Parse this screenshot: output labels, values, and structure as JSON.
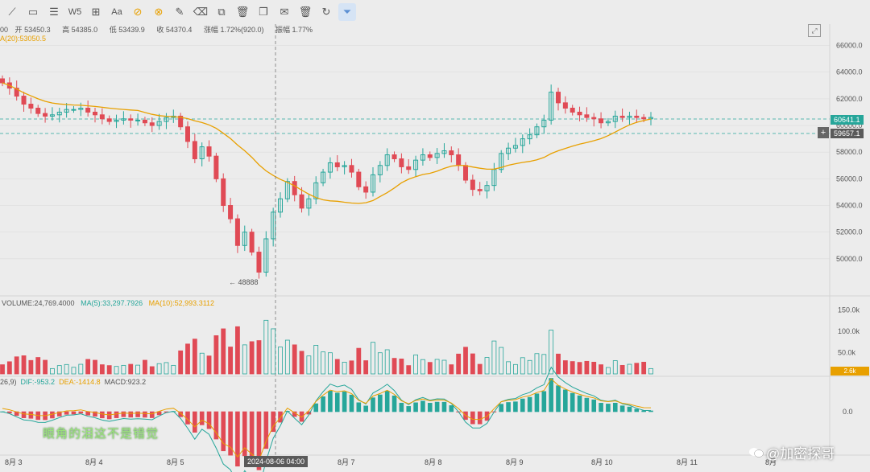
{
  "toolbar": {
    "tools": [
      {
        "icon": "trend-line-icon"
      },
      {
        "icon": "rectangle-icon"
      },
      {
        "icon": "parallel-channel-icon"
      },
      {
        "icon": "wave-icon",
        "label": "W5"
      },
      {
        "icon": "measure-icon"
      },
      {
        "icon": "text-icon",
        "label": "Aa"
      },
      {
        "icon": "magnet-icon",
        "active": true
      },
      {
        "icon": "lock-drawing-icon",
        "active": true
      },
      {
        "icon": "brush-icon"
      },
      {
        "icon": "eraser-icon"
      },
      {
        "icon": "hide-drawings-icon"
      },
      {
        "icon": "trash-icon"
      },
      {
        "icon": "copy-icon"
      },
      {
        "icon": "note-icon"
      },
      {
        "icon": "delete-icon"
      },
      {
        "icon": "refresh-icon"
      },
      {
        "icon": "filter-icon",
        "active": true
      }
    ]
  },
  "ohlc": {
    "prefix": "00",
    "open_label": "开",
    "open": "53450.3",
    "high_label": "高",
    "high": "54385.0",
    "low_label": "低",
    "low": "53439.9",
    "close_label": "收",
    "close": "54370.4",
    "change_label": "涨幅",
    "change": "1.72%(920.0)",
    "amp_label": "振幅",
    "amp": "1.77%"
  },
  "ma_line": "A(20):53050.5",
  "price_axis": [
    "66000.0",
    "64000.0",
    "62000.0",
    "60000.0",
    "58000.0",
    "56000.0",
    "54000.0",
    "52000.0",
    "50000.0"
  ],
  "price_tags": {
    "last": "60641.1",
    "cross": "59657.1",
    "low_marker": "48888"
  },
  "volume": {
    "label": "VOLUME:24,769.4000",
    "ma5": "MA(5):33,297.7926",
    "ma10": "MA(10):52,993.3112",
    "axis": [
      "150.0k",
      "100.0k",
      "50.0k"
    ],
    "tag": "2.6k"
  },
  "macd": {
    "label": "26,9)",
    "dif": "DIF:-953.2",
    "dea": "DEA:-1414.8",
    "macd": "MACD:923.2",
    "axis": "0.0"
  },
  "x_axis": [
    "8月 3",
    "8月 4",
    "8月 5",
    "8月 7",
    "8月 8",
    "8月 9",
    "8月 10",
    "8月 11",
    "8月"
  ],
  "crosshair_time": "2024-08-06 04:00",
  "subtitle": "眼角的泪这不是错觉",
  "watermark": "@加密探哥",
  "colors": {
    "up": "#26a69a",
    "down": "#e04a55",
    "ma": "#e8a000",
    "dif": "#26a69a",
    "dea": "#e8a000",
    "accent": "#e8a000"
  },
  "chart_data": {
    "type": "candlestick",
    "interval": "4h",
    "ma20_color": "#e8a000",
    "x_ticks": [
      "8月 3",
      "8月 4",
      "8月 5",
      "8月 7",
      "8月 8",
      "8月 9",
      "8月 10",
      "8月 11"
    ],
    "y_range": [
      48000,
      67000
    ],
    "close_path": [
      63200,
      62800,
      62200,
      61600,
      61300,
      60900,
      60700,
      60800,
      61000,
      61200,
      61200,
      61300,
      61000,
      60800,
      60500,
      60300,
      60400,
      60500,
      60400,
      60400,
      60200,
      60000,
      60300,
      60600,
      60700,
      59900,
      58800,
      57500,
      58400,
      57700,
      56000,
      54000,
      53000,
      51000,
      52000,
      50500,
      49000,
      51500,
      53500,
      54500,
      55800,
      54800,
      53800,
      54500,
      55700,
      56500,
      57200,
      56900,
      57000,
      56500,
      55400,
      55000,
      56300,
      57000,
      57800,
      57500,
      56900,
      56700,
      57400,
      57800,
      57600,
      57900,
      58100,
      57800,
      57000,
      55900,
      55200,
      55100,
      55500,
      56700,
      57900,
      58300,
      58500,
      59000,
      59300,
      59900,
      60400,
      62500,
      61700,
      61300,
      61000,
      60800,
      60600,
      60500,
      60200,
      60300,
      60700,
      60600,
      60700,
      60600,
      60500,
      60600
    ]
  }
}
